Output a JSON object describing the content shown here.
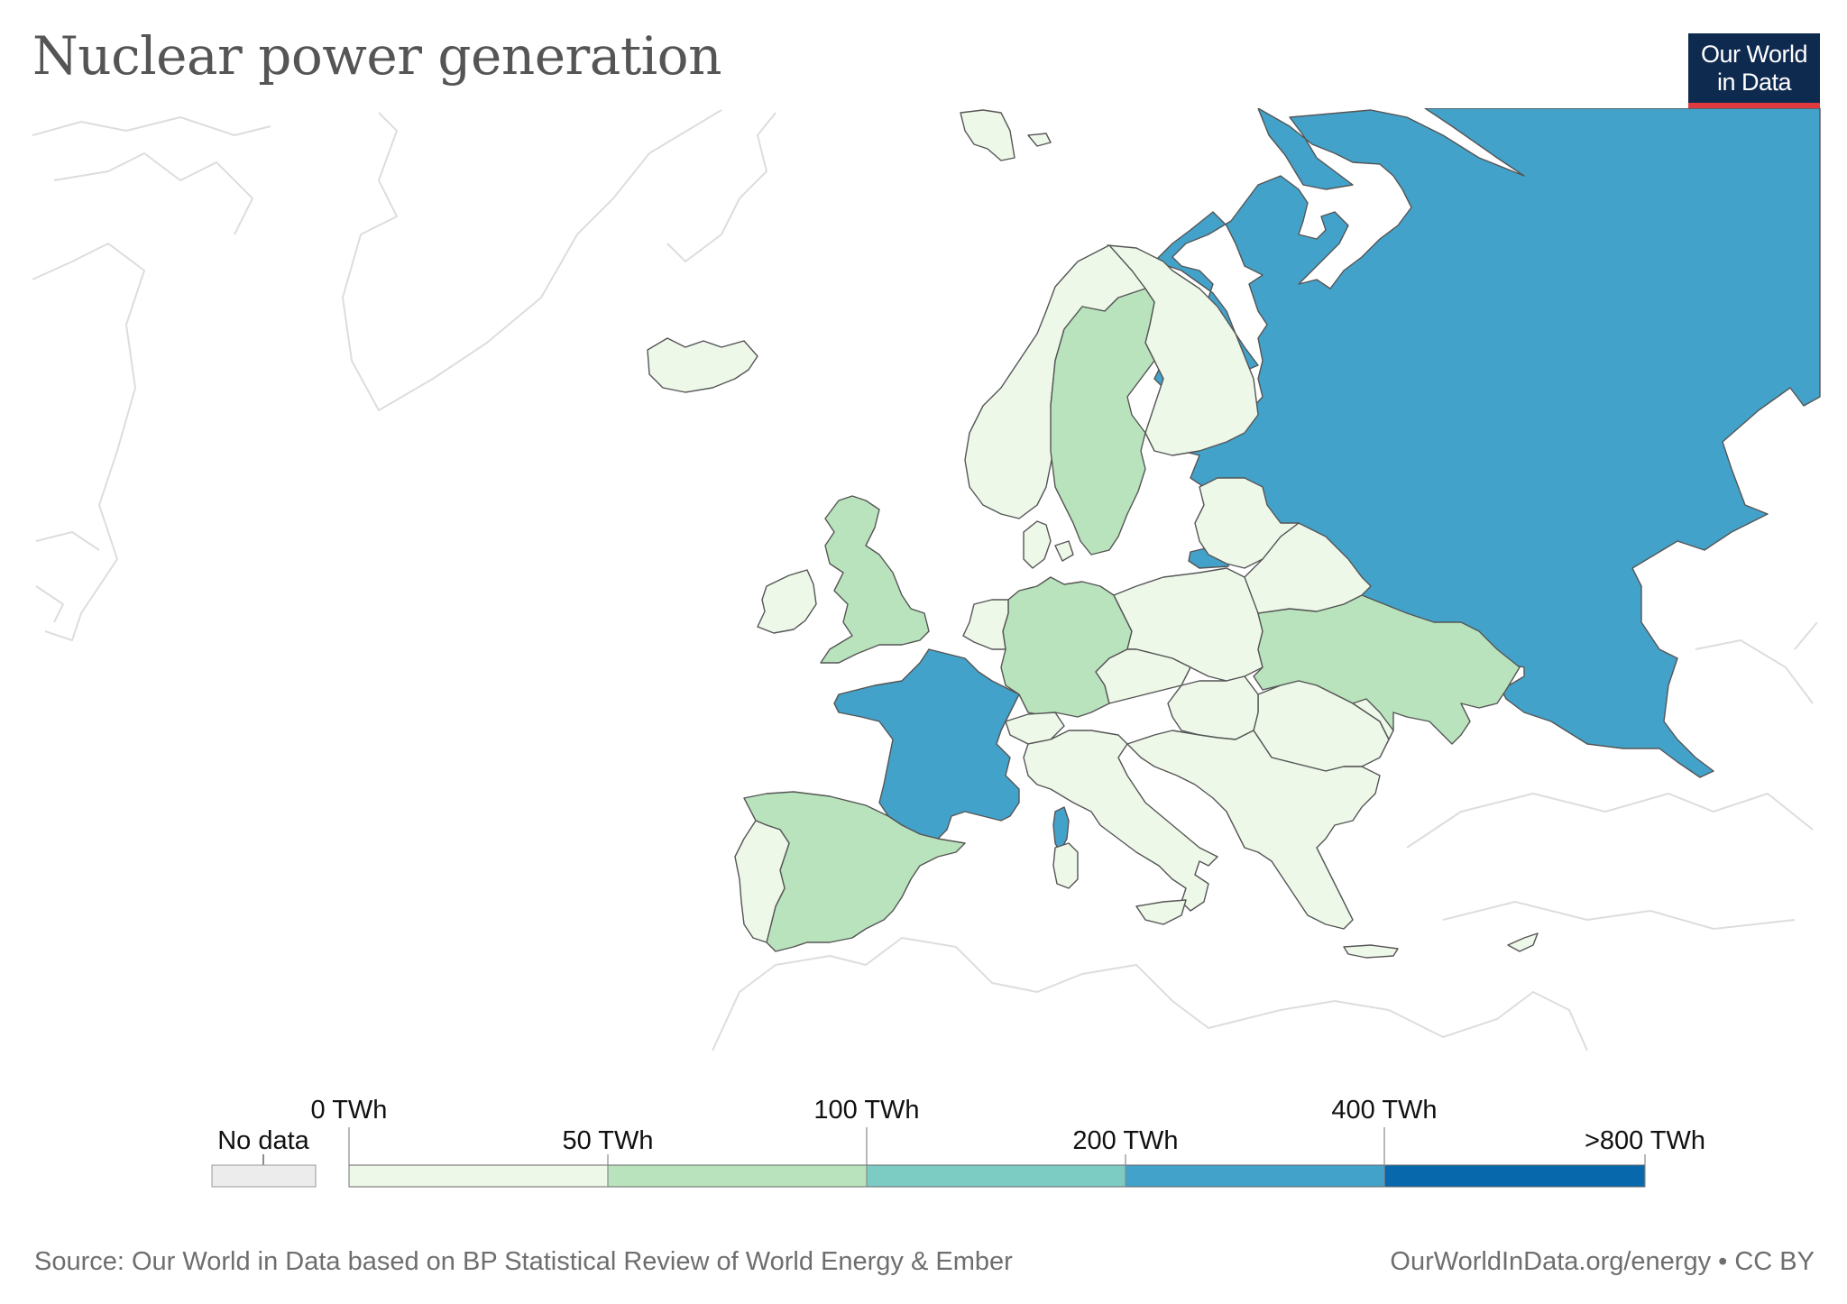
{
  "title": "Nuclear power generation",
  "logo": {
    "line1": "Our World",
    "line2": "in Data"
  },
  "legend": {
    "no_data_label": "No data",
    "thresholds": [
      "0 TWh",
      "50 TWh",
      "100 TWh",
      "200 TWh",
      "400 TWh",
      ">800 TWh"
    ],
    "bins": [
      {
        "range": "0–50 TWh",
        "color": "#edf8e9"
      },
      {
        "range": "50–100 TWh",
        "color": "#b9e3bc"
      },
      {
        "range": "100–200 TWh",
        "color": "#7cccc4"
      },
      {
        "range": "200–400 TWh",
        "color": "#43a2ca"
      },
      {
        "range": "400–800 TWh",
        "color": "#0868ac"
      }
    ],
    "no_data_color": "#ececec"
  },
  "regions": [
    {
      "name": "Russia",
      "bin": 3
    },
    {
      "name": "France",
      "bin": 3
    },
    {
      "name": "Spain",
      "bin": 1
    },
    {
      "name": "Germany",
      "bin": 1
    },
    {
      "name": "Sweden",
      "bin": 1
    },
    {
      "name": "Ukraine",
      "bin": 1
    },
    {
      "name": "United Kingdom",
      "bin": 1
    }
  ],
  "source": "Source: Our World in Data based on BP Statistical Review of World Energy & Ember",
  "url": "OurWorldInData.org/energy • CC BY",
  "colors": {
    "title": "#555555",
    "text": "#6e6e6e",
    "border": "#555555",
    "outline": "#dddddd"
  }
}
